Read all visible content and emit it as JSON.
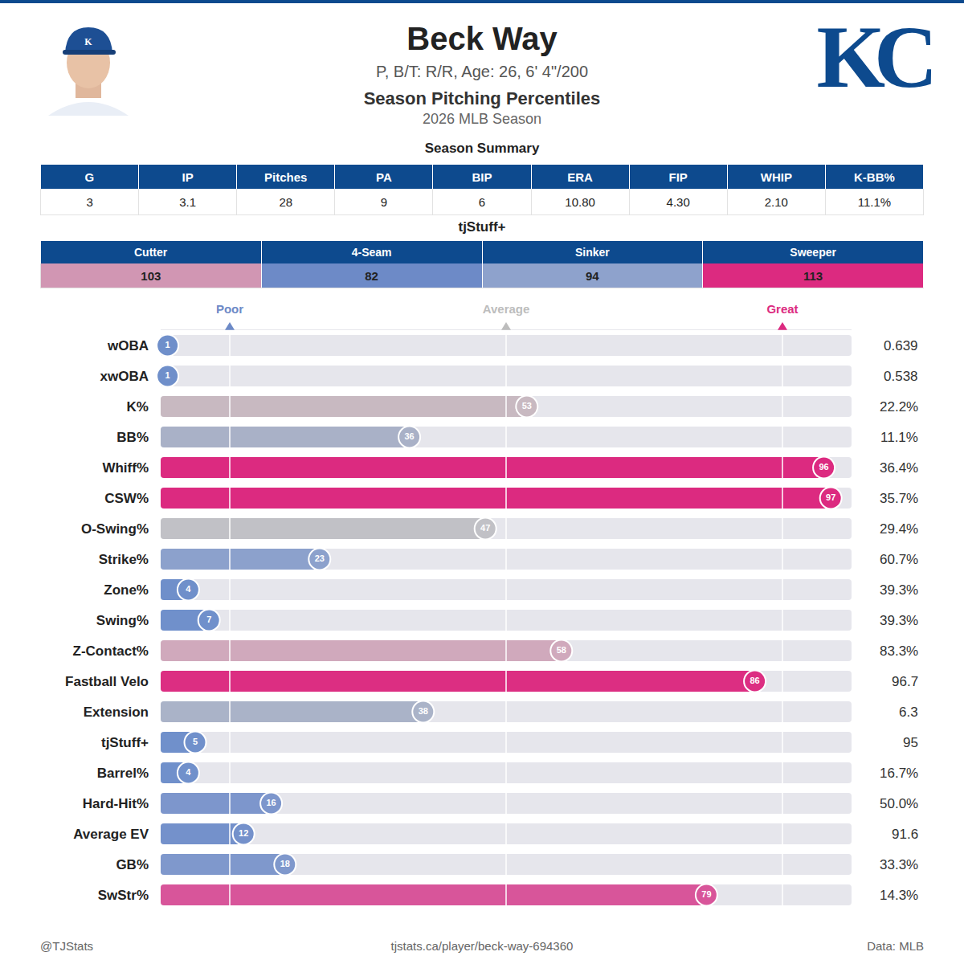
{
  "header": {
    "name": "Beck Way",
    "info": "P, B/T: R/R, Age: 26, 6' 4\"/200",
    "title": "Season Pitching Percentiles",
    "season": "2026 MLB Season",
    "logo": "KC"
  },
  "summary": {
    "title": "Season Summary",
    "columns": [
      "G",
      "IP",
      "Pitches",
      "PA",
      "BIP",
      "ERA",
      "FIP",
      "WHIP",
      "K-BB%"
    ],
    "values": [
      "3",
      "3.1",
      "28",
      "9",
      "6",
      "10.80",
      "4.30",
      "2.10",
      "11.1%"
    ]
  },
  "stuff": {
    "title": "tjStuff+",
    "columns": [
      "Cutter",
      "4-Seam",
      "Sinker",
      "Sweeper"
    ],
    "values": [
      103,
      82,
      94,
      113
    ],
    "colors": [
      "#d196b3",
      "#6d8ac7",
      "#8ea2cc",
      "#dc2a80"
    ]
  },
  "chart_data": {
    "type": "bar",
    "orientation": "horizontal",
    "categories": [
      "wOBA",
      "xwOBA",
      "K%",
      "BB%",
      "Whiff%",
      "CSW%",
      "O-Swing%",
      "Strike%",
      "Zone%",
      "Swing%",
      "Z-Contact%",
      "Fastball Velo",
      "Extension",
      "tjStuff+",
      "Barrel%",
      "Hard-Hit%",
      "Average EV",
      "GB%",
      "SwStr%"
    ],
    "values": [
      1,
      1,
      53,
      36,
      96,
      97,
      47,
      23,
      4,
      7,
      58,
      86,
      38,
      5,
      4,
      16,
      12,
      18,
      79
    ],
    "colors": [
      "#6f8fca",
      "#6f8fca",
      "#c8b9c1",
      "#a9b1c7",
      "#dc2a80",
      "#dc2a80",
      "#c1c1c6",
      "#8ca1cc",
      "#6f8fca",
      "#7090cb",
      "#d0a9bc",
      "#dc2e82",
      "#aab3c8",
      "#7090cb",
      "#7090cb",
      "#7d96cc",
      "#7491cb",
      "#7f98cc",
      "#d8559a"
    ],
    "data_labels": true,
    "stats": [
      "0.639",
      "0.538",
      "22.2%",
      "11.1%",
      "36.4%",
      "35.7%",
      "29.4%",
      "60.7%",
      "39.3%",
      "39.3%",
      "83.3%",
      "96.7",
      "6.3",
      "95",
      "16.7%",
      "50.0%",
      "91.6",
      "33.3%",
      "14.3%"
    ],
    "xlim": [
      0,
      100
    ],
    "xticks": [
      {
        "value": 10,
        "label": "Poor"
      },
      {
        "value": 50,
        "label": "Average"
      },
      {
        "value": 90,
        "label": "Great"
      }
    ],
    "grid": true
  },
  "footer": {
    "left": "@TJStats",
    "center": "tjstats.ca/player/beck-way-694360",
    "right": "Data: MLB"
  }
}
